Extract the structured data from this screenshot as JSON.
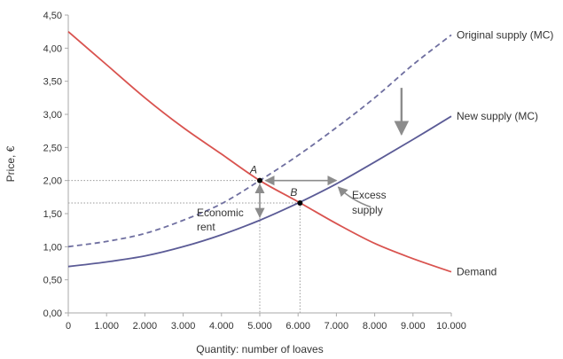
{
  "chart_data": {
    "type": "line",
    "xlabel": "Quantity: number of loaves",
    "ylabel": "Price, €",
    "xlim": [
      0,
      10000
    ],
    "ylim": [
      0,
      4.5
    ],
    "x_ticks": [
      0,
      1000,
      2000,
      3000,
      4000,
      5000,
      6000,
      7000,
      8000,
      9000,
      10000
    ],
    "x_tick_labels": [
      "0",
      "1.000",
      "2.000",
      "3.000",
      "4.000",
      "5.000",
      "6.000",
      "7.000",
      "8.000",
      "9.000",
      "10.000"
    ],
    "y_ticks": [
      0,
      0.5,
      1,
      1.5,
      2,
      2.5,
      3,
      3.5,
      4,
      4.5
    ],
    "y_tick_labels": [
      "0,00",
      "0,50",
      "1,00",
      "1,50",
      "2,00",
      "2,50",
      "3,00",
      "3,50",
      "4,00",
      "4,50"
    ],
    "grid": false,
    "legend": "none",
    "series": [
      {
        "name": "Demand",
        "color": "#d9534f",
        "style": "solid",
        "x": [
          0,
          1000,
          2000,
          3000,
          4000,
          5000,
          6000,
          7000,
          8000,
          9000,
          10000
        ],
        "y": [
          4.25,
          3.75,
          3.25,
          2.8,
          2.4,
          2.0,
          1.68,
          1.35,
          1.05,
          0.82,
          0.62
        ]
      },
      {
        "name": "Original supply (MC)",
        "color": "#6f6fa0",
        "style": "dashed",
        "x": [
          0,
          1000,
          2000,
          3000,
          4000,
          5000,
          6000,
          7000,
          8000,
          9000,
          10000
        ],
        "y": [
          1.0,
          1.08,
          1.2,
          1.4,
          1.65,
          2.0,
          2.38,
          2.8,
          3.25,
          3.75,
          4.2
        ]
      },
      {
        "name": "New supply (MC)",
        "color": "#5b5b96",
        "style": "solid",
        "x": [
          0,
          1000,
          2000,
          3000,
          4000,
          5000,
          6000,
          7000,
          8000,
          9000,
          10000
        ],
        "y": [
          0.7,
          0.77,
          0.86,
          1.0,
          1.18,
          1.4,
          1.66,
          1.95,
          2.28,
          2.62,
          2.97
        ]
      }
    ],
    "points": [
      {
        "label": "A",
        "x": 5000,
        "y": 2.0
      },
      {
        "label": "B",
        "x": 6050,
        "y": 1.66
      }
    ],
    "annotations": {
      "economic_rent": [
        "Economic",
        "rent"
      ],
      "excess_supply": [
        "Excess",
        "supply"
      ]
    },
    "colors": {
      "axis": "#aaaaaa",
      "guide": "#999999",
      "arrow": "#8c8c8c",
      "point": "#000000"
    }
  }
}
